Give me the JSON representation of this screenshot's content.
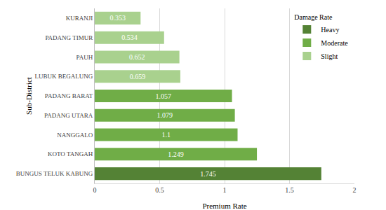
{
  "chart_data": {
    "type": "bar",
    "orientation": "horizontal",
    "x_label": "Premium Rate",
    "y_label": "Sub-District",
    "categories": [
      "KURANJI",
      "PADANG TIMUR",
      "PAUH",
      "LUBUK BEGALUNG",
      "PADANG BARAT",
      "PADANG UTARA",
      "NANGGALO",
      "KOTO TANGAH",
      "BUNGUS TELUK KABUNG"
    ],
    "series": [
      {
        "name": "Heavy",
        "color": "#548235",
        "values": [
          null,
          null,
          null,
          null,
          null,
          null,
          null,
          null,
          1.745
        ]
      },
      {
        "name": "Moderate",
        "color": "#70ad47",
        "values": [
          null,
          null,
          null,
          null,
          1.057,
          1.079,
          1.1,
          1.249,
          null
        ]
      },
      {
        "name": "Slight",
        "color": "#a9d18e",
        "values": [
          0.353,
          0.534,
          0.652,
          0.659,
          null,
          null,
          null,
          null,
          null
        ]
      }
    ],
    "legend_title": "Damage Rate",
    "legend": "upper right",
    "xlim": [
      0,
      2
    ],
    "xticks": [
      0,
      0.5,
      1,
      1.5,
      2
    ],
    "grid": true,
    "data_labels": true,
    "stacked": false
  }
}
